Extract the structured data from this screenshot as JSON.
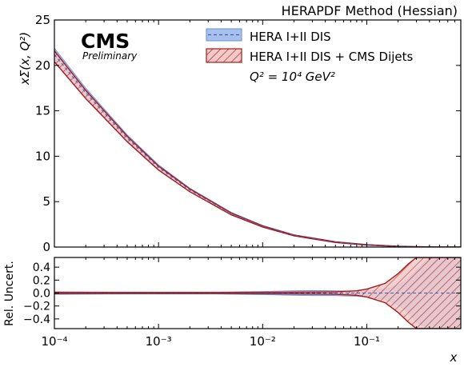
{
  "chart_data": [
    {
      "type": "area",
      "title": "HERAPDF Method (Hessian)",
      "experiment_logo": "CMS",
      "status_label": "Preliminary",
      "annotation": "Q² = 10⁴ GeV²",
      "ylabel": "xΣ(x, Q²)",
      "xlabel": "x",
      "xscale": "log",
      "xlim": [
        0.0001,
        0.8
      ],
      "ylim": [
        0,
        25
      ],
      "yticks": [
        0,
        5,
        10,
        15,
        20,
        25
      ],
      "xticks": [
        0.0001,
        0.001,
        0.01,
        0.1
      ],
      "xtick_labels": [
        "10⁻⁴",
        "10⁻³",
        "10⁻²",
        "10⁻¹"
      ],
      "ytick_labels": [
        "0",
        "5",
        "10",
        "15",
        "20",
        "25"
      ],
      "legend_placement": "top-right",
      "x": [
        0.0001,
        0.0002,
        0.0005,
        0.001,
        0.002,
        0.005,
        0.01,
        0.02,
        0.05,
        0.1,
        0.2,
        0.3,
        0.5,
        0.8
      ],
      "series": [
        {
          "name": "HERA I+II DIS",
          "style": "blue band with dashed central line",
          "color": "#6a8fd6",
          "values": [
            21.2,
            17.0,
            12.0,
            8.8,
            6.3,
            3.7,
            2.3,
            1.3,
            0.55,
            0.24,
            0.08,
            0.03,
            0.005,
            0.0
          ],
          "band_halfwidth": [
            0.7,
            0.5,
            0.35,
            0.25,
            0.18,
            0.12,
            0.08,
            0.06,
            0.04,
            0.03,
            0.02,
            0.01,
            0.005,
            0.0
          ]
        },
        {
          "name": "HERA I+II DIS + CMS Dijets",
          "style": "red hatched band with solid border",
          "color": "#a31a1a",
          "values": [
            21.0,
            16.8,
            11.9,
            8.7,
            6.25,
            3.65,
            2.27,
            1.28,
            0.54,
            0.235,
            0.08,
            0.03,
            0.005,
            0.0
          ],
          "band_halfwidth": [
            0.6,
            0.45,
            0.3,
            0.22,
            0.16,
            0.1,
            0.07,
            0.05,
            0.035,
            0.025,
            0.018,
            0.01,
            0.005,
            0.0
          ]
        }
      ]
    },
    {
      "type": "area",
      "ylabel": "Rel. Uncert.",
      "xlabel": "x",
      "xscale": "log",
      "xlim": [
        0.0001,
        0.8
      ],
      "ylim": [
        -0.55,
        0.55
      ],
      "yticks": [
        -0.4,
        -0.2,
        0.0,
        0.2,
        0.4
      ],
      "ytick_labels": [
        "−0.4",
        "−0.2",
        "0.0",
        "0.2",
        "0.4"
      ],
      "x": [
        0.0001,
        0.0003,
        0.001,
        0.003,
        0.01,
        0.02,
        0.03,
        0.05,
        0.08,
        0.1,
        0.15,
        0.2,
        0.25,
        0.3,
        0.4,
        0.5,
        0.8
      ],
      "series": [
        {
          "name": "HERA I+II DIS",
          "color": "#6a8fd6",
          "upper": [
            0.02,
            0.015,
            0.012,
            0.012,
            0.025,
            0.035,
            0.04,
            0.035,
            0.03,
            0.03,
            0.06,
            0.12,
            0.22,
            0.35,
            0.55,
            0.55,
            0.55
          ],
          "lower": [
            -0.02,
            -0.015,
            -0.012,
            -0.012,
            -0.025,
            -0.035,
            -0.04,
            -0.04,
            -0.05,
            -0.06,
            -0.1,
            -0.18,
            -0.3,
            -0.45,
            -0.55,
            -0.55,
            -0.55
          ]
        },
        {
          "name": "HERA I+II DIS + CMS Dijets",
          "color": "#a31a1a",
          "upper": [
            0.01,
            0.01,
            0.01,
            0.01,
            0.01,
            0.012,
            0.015,
            0.02,
            0.035,
            0.06,
            0.15,
            0.3,
            0.45,
            0.55,
            0.55,
            0.55,
            0.55
          ],
          "lower": [
            -0.01,
            -0.01,
            -0.01,
            -0.01,
            -0.01,
            -0.012,
            -0.015,
            -0.02,
            -0.035,
            -0.06,
            -0.15,
            -0.3,
            -0.45,
            -0.55,
            -0.55,
            -0.55,
            -0.55
          ]
        }
      ]
    }
  ]
}
